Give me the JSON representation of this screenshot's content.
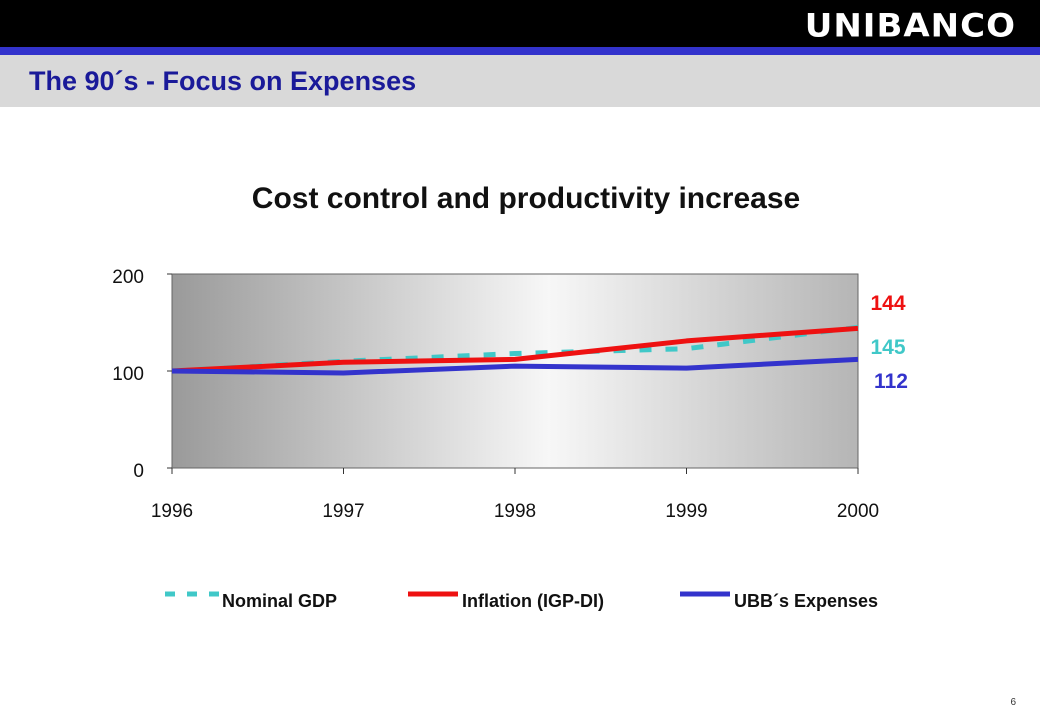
{
  "header": {
    "logo_text": "UNIBANCO",
    "page_title": "The 90´s - Focus on Expenses"
  },
  "footer": {
    "page_number": "6"
  },
  "colors": {
    "nominal_gdp": "#40c8c8",
    "inflation": "#ee1111",
    "expenses": "#3333cc",
    "title_blue": "#1a1a99"
  },
  "chart_data": {
    "type": "line",
    "title": "Cost control and productivity increase",
    "xlabel": "",
    "ylabel": "",
    "x": [
      "1996",
      "1997",
      "1998",
      "1999",
      "2000"
    ],
    "ylim": [
      0,
      200
    ],
    "yticks": [
      "0",
      "100",
      "200"
    ],
    "grid": false,
    "legend_position": "bottom",
    "series": [
      {
        "name": "Nominal GDP",
        "values": [
          100,
          110,
          118,
          123,
          145
        ],
        "style": "dashed",
        "color": "#40c8c8",
        "end_label": "145"
      },
      {
        "name": "Inflation (IGP-DI)",
        "values": [
          100,
          109,
          112,
          131,
          144
        ],
        "style": "solid",
        "color": "#ee1111",
        "end_label": "144"
      },
      {
        "name": "UBB´s Expenses",
        "values": [
          100,
          98,
          105,
          103,
          112
        ],
        "style": "solid",
        "color": "#3333cc",
        "end_label": "112"
      }
    ]
  }
}
